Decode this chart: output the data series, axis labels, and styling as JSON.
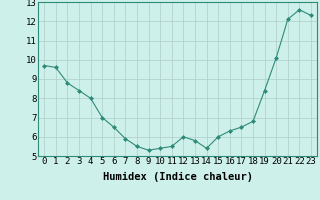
{
  "x": [
    0,
    1,
    2,
    3,
    4,
    5,
    6,
    7,
    8,
    9,
    10,
    11,
    12,
    13,
    14,
    15,
    16,
    17,
    18,
    19,
    20,
    21,
    22,
    23
  ],
  "y": [
    9.7,
    9.6,
    8.8,
    8.4,
    8.0,
    7.0,
    6.5,
    5.9,
    5.5,
    5.3,
    5.4,
    5.5,
    6.0,
    5.8,
    5.4,
    6.0,
    6.3,
    6.5,
    6.8,
    8.4,
    10.1,
    12.1,
    12.6,
    12.3
  ],
  "line_color": "#2e8b7a",
  "marker_color": "#2e8b7a",
  "bg_color": "#cef0ea",
  "grid_color": "#b0cdc8",
  "xlabel": "Humidex (Indice chaleur)",
  "ylim": [
    5,
    13
  ],
  "xlim": [
    -0.5,
    23.5
  ],
  "yticks": [
    5,
    6,
    7,
    8,
    9,
    10,
    11,
    12,
    13
  ],
  "xticks": [
    0,
    1,
    2,
    3,
    4,
    5,
    6,
    7,
    8,
    9,
    10,
    11,
    12,
    13,
    14,
    15,
    16,
    17,
    18,
    19,
    20,
    21,
    22,
    23
  ],
  "xlabel_fontsize": 7.5,
  "tick_fontsize": 6.5
}
